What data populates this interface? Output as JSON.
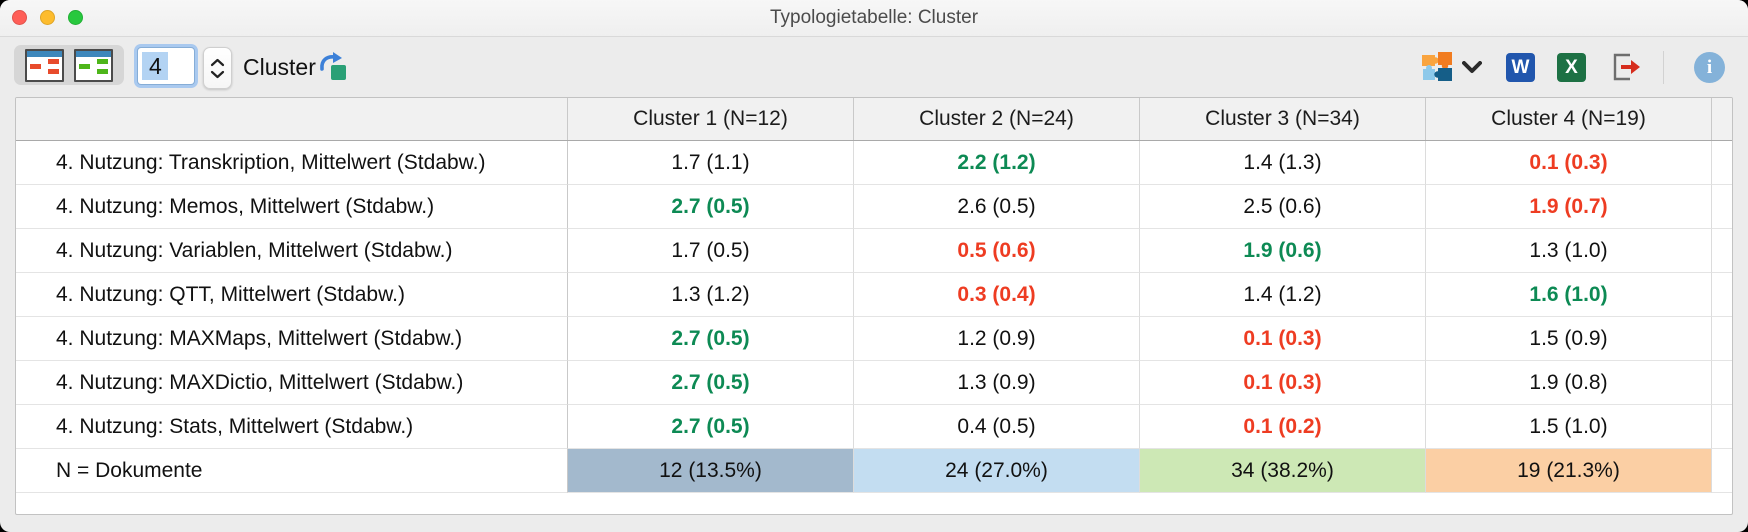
{
  "window": {
    "title": "Typologietabelle: Cluster"
  },
  "toolbar": {
    "cluster_count_value": "4",
    "cluster_label": "Cluster",
    "word_label": "W",
    "excel_label": "X",
    "info_label": "i"
  },
  "colors": {
    "highlight_green": "#0d8a54",
    "highlight_red": "#ee3c22",
    "cluster1_bg": "#a3b9cd",
    "cluster2_bg": "#c3ddf1",
    "cluster3_bg": "#cde8b5",
    "cluster4_bg": "#fbcfa4"
  },
  "table": {
    "columns": [
      "",
      "Cluster 1 (N=12)",
      "Cluster 2 (N=24)",
      "Cluster 3 (N=34)",
      "Cluster 4 (N=19)"
    ],
    "rows": [
      {
        "label": "4. Nutzung: Transkription, Mittelwert (Stdabw.)",
        "cells": [
          {
            "text": "1.7 (1.1)",
            "style": "normal"
          },
          {
            "text": "2.2 (1.2)",
            "style": "green"
          },
          {
            "text": "1.4 (1.3)",
            "style": "normal"
          },
          {
            "text": "0.1 (0.3)",
            "style": "red"
          }
        ]
      },
      {
        "label": "4. Nutzung: Memos, Mittelwert (Stdabw.)",
        "cells": [
          {
            "text": "2.7 (0.5)",
            "style": "green"
          },
          {
            "text": "2.6 (0.5)",
            "style": "normal"
          },
          {
            "text": "2.5 (0.6)",
            "style": "normal"
          },
          {
            "text": "1.9 (0.7)",
            "style": "red"
          }
        ]
      },
      {
        "label": "4. Nutzung: Variablen, Mittelwert (Stdabw.)",
        "cells": [
          {
            "text": "1.7 (0.5)",
            "style": "normal"
          },
          {
            "text": "0.5 (0.6)",
            "style": "red"
          },
          {
            "text": "1.9 (0.6)",
            "style": "green"
          },
          {
            "text": "1.3 (1.0)",
            "style": "normal"
          }
        ]
      },
      {
        "label": "4. Nutzung: QTT, Mittelwert (Stdabw.)",
        "cells": [
          {
            "text": "1.3 (1.2)",
            "style": "normal"
          },
          {
            "text": "0.3 (0.4)",
            "style": "red"
          },
          {
            "text": "1.4 (1.2)",
            "style": "normal"
          },
          {
            "text": "1.6 (1.0)",
            "style": "green"
          }
        ]
      },
      {
        "label": "4. Nutzung: MAXMaps, Mittelwert (Stdabw.)",
        "cells": [
          {
            "text": "2.7 (0.5)",
            "style": "green"
          },
          {
            "text": "1.2 (0.9)",
            "style": "normal"
          },
          {
            "text": "0.1 (0.3)",
            "style": "red"
          },
          {
            "text": "1.5 (0.9)",
            "style": "normal"
          }
        ]
      },
      {
        "label": "4. Nutzung: MAXDictio, Mittelwert (Stdabw.)",
        "cells": [
          {
            "text": "2.7 (0.5)",
            "style": "green"
          },
          {
            "text": "1.3 (0.9)",
            "style": "normal"
          },
          {
            "text": "0.1 (0.3)",
            "style": "red"
          },
          {
            "text": "1.9 (0.8)",
            "style": "normal"
          }
        ]
      },
      {
        "label": "4. Nutzung: Stats, Mittelwert (Stdabw.)",
        "cells": [
          {
            "text": "2.7 (0.5)",
            "style": "green"
          },
          {
            "text": "0.4 (0.5)",
            "style": "normal"
          },
          {
            "text": "0.1 (0.2)",
            "style": "red"
          },
          {
            "text": "1.5 (1.0)",
            "style": "normal"
          }
        ]
      },
      {
        "label": "N = Dokumente",
        "cells": [
          {
            "text": "12 (13.5%)",
            "style": "normal",
            "bg": "#a3b9cd"
          },
          {
            "text": "24 (27.0%)",
            "style": "normal",
            "bg": "#c3ddf1"
          },
          {
            "text": "34 (38.2%)",
            "style": "normal",
            "bg": "#cde8b5"
          },
          {
            "text": "19 (21.3%)",
            "style": "normal",
            "bg": "#fbcfa4"
          }
        ]
      }
    ]
  }
}
